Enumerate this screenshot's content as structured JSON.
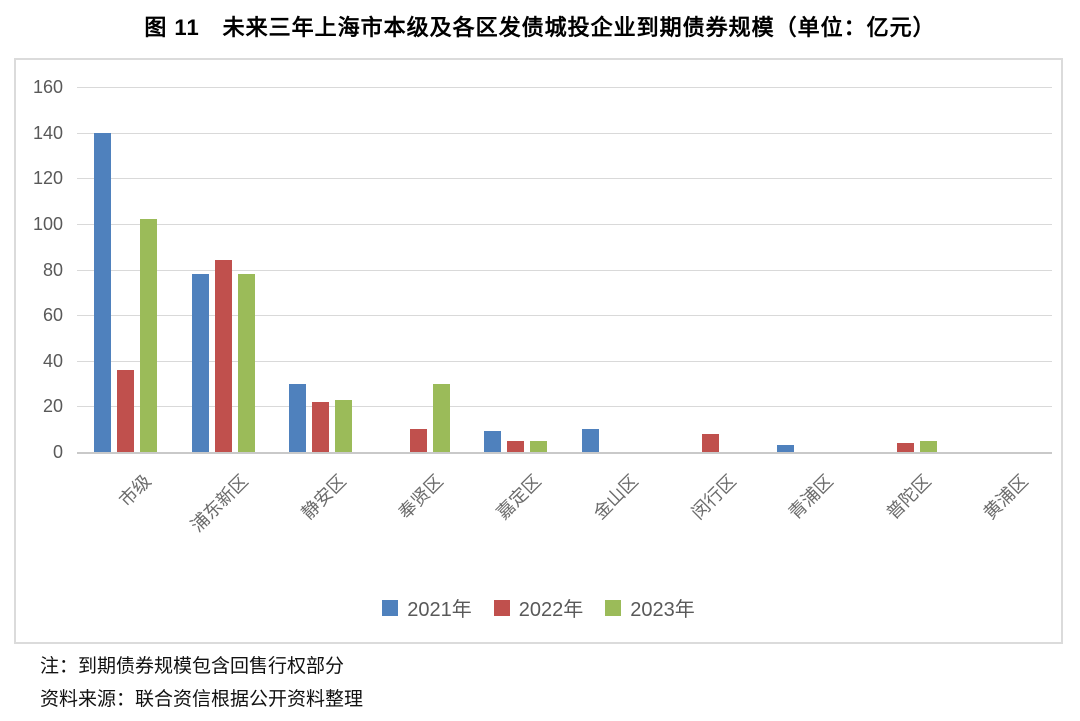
{
  "title": "图 11　未来三年上海市本级及各区发债城投企业到期债券规模（单位：亿元）",
  "chart_data": {
    "type": "bar",
    "title": "未来三年上海市本级及各区发债城投企业到期债券规模",
    "unit": "亿元",
    "categories": [
      "市级",
      "浦东新区",
      "静安区",
      "奉贤区",
      "嘉定区",
      "金山区",
      "闵行区",
      "青浦区",
      "普陀区",
      "黄浦区"
    ],
    "series": [
      {
        "name": "2021年",
        "color": "#4f81bd",
        "values": [
          140,
          78,
          30,
          0,
          9,
          10,
          0,
          3,
          0,
          0
        ]
      },
      {
        "name": "2022年",
        "color": "#c0504d",
        "values": [
          36,
          84,
          22,
          10,
          5,
          0,
          8,
          0,
          4,
          0
        ]
      },
      {
        "name": "2023年",
        "color": "#9bbb59",
        "values": [
          102,
          78,
          23,
          30,
          5,
          0,
          0,
          0,
          5,
          0
        ]
      }
    ],
    "ylim": [
      0,
      160
    ],
    "ytick_step": 20,
    "yticks": [
      0,
      20,
      40,
      60,
      80,
      100,
      120,
      140,
      160
    ],
    "grid": true,
    "legend_position": "bottom",
    "xlabel": "",
    "ylabel": ""
  },
  "notes": {
    "note": "注：到期债券规模包含回售行权部分",
    "source": "资料来源：联合资信根据公开资料整理"
  }
}
